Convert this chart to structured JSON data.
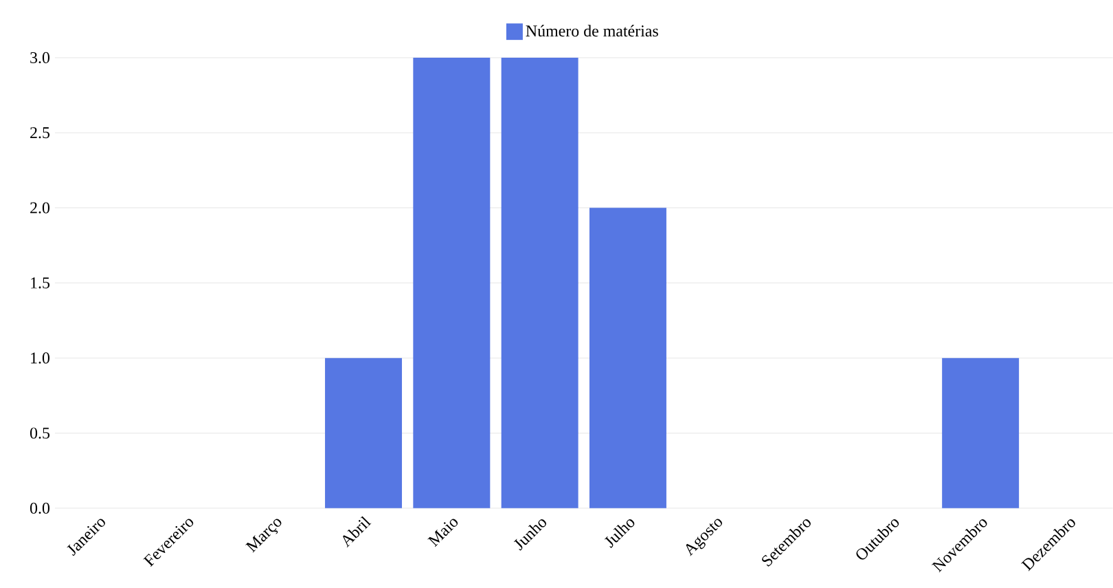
{
  "chart_data": {
    "type": "bar",
    "categories": [
      "Janeiro",
      "Fevereiro",
      "Março",
      "Abril",
      "Maio",
      "Junho",
      "Julho",
      "Agosto",
      "Setembro",
      "Outubro",
      "Novembro",
      "Dezembro"
    ],
    "series": [
      {
        "name": "Número de matérias",
        "color": "#5677e3",
        "values": [
          0,
          0,
          0,
          1,
          3,
          3,
          2,
          0,
          0,
          0,
          1,
          0
        ]
      }
    ],
    "ylim": [
      0,
      3
    ],
    "yticks": [
      {
        "value": 0,
        "label": "0.0"
      },
      {
        "value": 0.5,
        "label": "0.5"
      },
      {
        "value": 1,
        "label": "1.0"
      },
      {
        "value": 1.5,
        "label": "1.5"
      },
      {
        "value": 2,
        "label": "2.0"
      },
      {
        "value": 2.5,
        "label": "2.5"
      },
      {
        "value": 3,
        "label": "3.0"
      }
    ],
    "grid": "y",
    "legend": "top"
  }
}
